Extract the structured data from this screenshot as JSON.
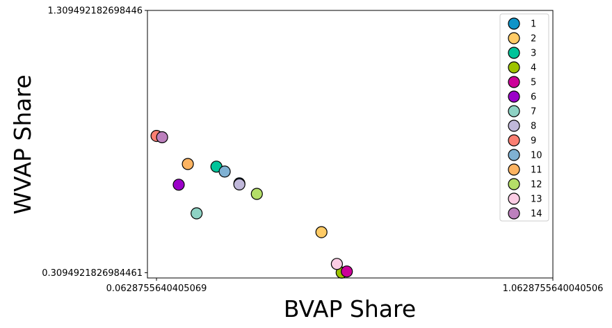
{
  "chart_data": {
    "type": "scatter",
    "title": "",
    "xlabel": "BVAP Share",
    "ylabel": "WVAP Share",
    "xlim": [
      0.04,
      1.0628755640040506
    ],
    "ylim": [
      0.2894921826984461,
      1.309492182698446
    ],
    "x_ticks": [
      {
        "value": 0.0628755640405069,
        "label": "0.0628755640405069"
      },
      {
        "value": 1.0628755640040506,
        "label": "1.0628755640040506"
      }
    ],
    "y_ticks": [
      {
        "value": 0.3094921826984461,
        "label": "0.3094921826984461"
      },
      {
        "value": 1.309492182698446,
        "label": "1.309492182698446"
      }
    ],
    "grid": false,
    "legend_position": "top-right",
    "series": [
      {
        "name": "1",
        "color": "#0f94c8",
        "x": [
          0.272
        ],
        "y": [
          0.65
        ]
      },
      {
        "name": "2",
        "color": "#ffcb66",
        "x": [
          0.479
        ],
        "y": [
          0.464
        ]
      },
      {
        "name": "3",
        "color": "#00c49a",
        "x": [
          0.214
        ],
        "y": [
          0.714
        ]
      },
      {
        "name": "4",
        "color": "#9dc300",
        "x": [
          0.53
        ],
        "y": [
          0.31
        ]
      },
      {
        "name": "5",
        "color": "#cc0099",
        "x": [
          0.543
        ],
        "y": [
          0.314
        ]
      },
      {
        "name": "6",
        "color": "#9b00c9",
        "x": [
          0.119
        ],
        "y": [
          0.645
        ]
      },
      {
        "name": "7",
        "color": "#8ed2c4",
        "x": [
          0.164
        ],
        "y": [
          0.536
        ]
      },
      {
        "name": "8",
        "color": "#c0b8da",
        "x": [
          0.272
        ],
        "y": [
          0.646
        ]
      },
      {
        "name": "9",
        "color": "#fb7f72",
        "x": [
          0.063
        ],
        "y": [
          0.831
        ]
      },
      {
        "name": "10",
        "color": "#7fb1d3",
        "x": [
          0.235
        ],
        "y": [
          0.695
        ]
      },
      {
        "name": "11",
        "color": "#fdb462",
        "x": [
          0.142
        ],
        "y": [
          0.724
        ]
      },
      {
        "name": "12",
        "color": "#b4de68",
        "x": [
          0.316
        ],
        "y": [
          0.61
        ]
      },
      {
        "name": "13",
        "color": "#fccde5",
        "x": [
          0.518
        ],
        "y": [
          0.343
        ]
      },
      {
        "name": "14",
        "color": "#bc80bd",
        "x": [
          0.077
        ],
        "y": [
          0.826
        ]
      }
    ]
  }
}
